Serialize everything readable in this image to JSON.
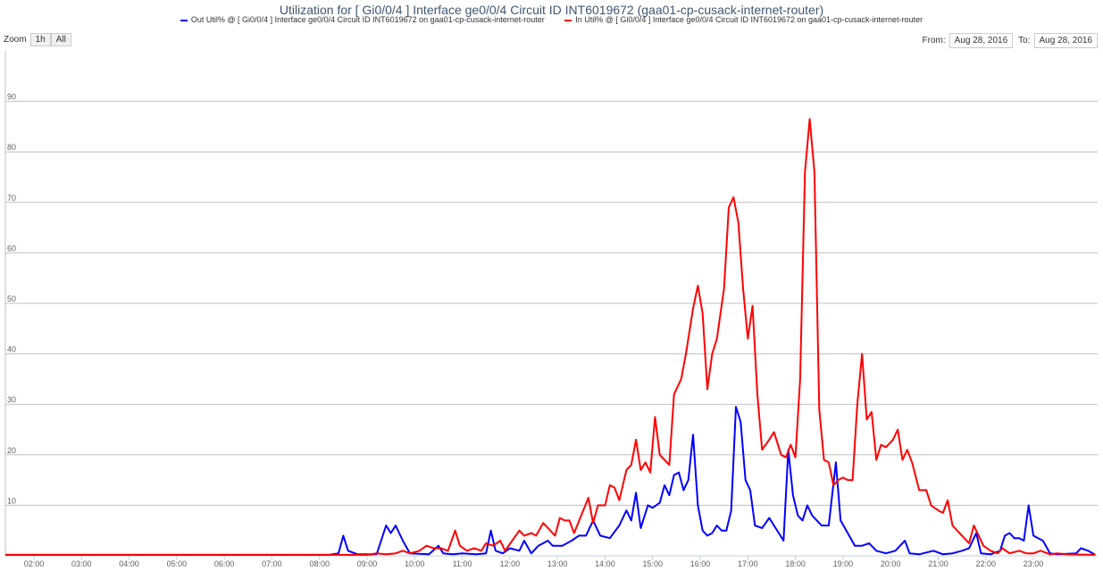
{
  "title": "Utilization for [ Gi0/0/4 ] Interface ge0/0/4 Circuit ID INT6019672 (gaa01-cp-cusack-internet-router)",
  "legend": [
    {
      "label": "Out Util% @ [ Gi0/0/4 ] Interface ge0/0/4 Circuit ID INT6019672 on gaa01-cp-cusack-internet-router",
      "color": "#0000ff"
    },
    {
      "label": "In Util% @ [ Gi0/0/4 ] Interface ge0/0/4 Circuit ID INT6019672 on gaa01-cp-cusack-internet-router",
      "color": "#ff0000"
    }
  ],
  "zoom": {
    "label": "Zoom",
    "buttons": [
      "1h",
      "All"
    ]
  },
  "range": {
    "from_label": "From:",
    "from_value": "Aug 28, 2016",
    "to_label": "To:",
    "to_value": "Aug 28, 2016"
  },
  "chart_data": {
    "type": "line",
    "xlim": [
      1.4,
      24.35
    ],
    "ylim": [
      0,
      100
    ],
    "x_ticks": [
      "02:00",
      "03:00",
      "04:00",
      "05:00",
      "06:00",
      "07:00",
      "08:00",
      "09:00",
      "10:00",
      "11:00",
      "12:00",
      "13:00",
      "14:00",
      "15:00",
      "16:00",
      "17:00",
      "18:00",
      "19:00",
      "20:00",
      "21:00",
      "22:00",
      "23:00"
    ],
    "y_ticks": [
      10,
      20,
      30,
      40,
      50,
      60,
      70,
      80,
      90
    ],
    "grid": true,
    "series": [
      {
        "name": "Out Util% @ [ Gi0/0/4 ] Interface ge0/0/4 Circuit ID INT6019672 on gaa01-cp-cusack-internet-router",
        "color": "#0000ff",
        "points": [
          [
            1.4,
            0.2
          ],
          [
            8.2,
            0.2
          ],
          [
            8.4,
            0.5
          ],
          [
            8.5,
            4
          ],
          [
            8.6,
            1
          ],
          [
            8.8,
            0.3
          ],
          [
            9.2,
            0.3
          ],
          [
            9.4,
            6
          ],
          [
            9.5,
            4.5
          ],
          [
            9.6,
            6
          ],
          [
            9.75,
            3
          ],
          [
            9.9,
            0.5
          ],
          [
            10.3,
            0.3
          ],
          [
            10.5,
            2
          ],
          [
            10.6,
            0.5
          ],
          [
            10.8,
            0.3
          ],
          [
            11.0,
            0.5
          ],
          [
            11.3,
            0.3
          ],
          [
            11.5,
            0.5
          ],
          [
            11.6,
            5
          ],
          [
            11.7,
            1
          ],
          [
            11.85,
            0.5
          ],
          [
            12.0,
            1.5
          ],
          [
            12.2,
            1
          ],
          [
            12.3,
            3
          ],
          [
            12.45,
            0.5
          ],
          [
            12.6,
            2
          ],
          [
            12.8,
            3
          ],
          [
            12.9,
            2
          ],
          [
            13.1,
            2
          ],
          [
            13.3,
            3
          ],
          [
            13.45,
            4
          ],
          [
            13.6,
            4
          ],
          [
            13.75,
            7
          ],
          [
            13.9,
            4
          ],
          [
            14.1,
            3.5
          ],
          [
            14.3,
            6
          ],
          [
            14.45,
            9
          ],
          [
            14.55,
            7
          ],
          [
            14.65,
            12.5
          ],
          [
            14.75,
            5.5
          ],
          [
            14.9,
            10
          ],
          [
            15.0,
            9.5
          ],
          [
            15.15,
            10.5
          ],
          [
            15.25,
            14
          ],
          [
            15.35,
            12
          ],
          [
            15.45,
            16
          ],
          [
            15.55,
            16.5
          ],
          [
            15.65,
            13
          ],
          [
            15.75,
            15
          ],
          [
            15.85,
            24
          ],
          [
            15.95,
            10
          ],
          [
            16.05,
            5
          ],
          [
            16.15,
            4
          ],
          [
            16.25,
            4.5
          ],
          [
            16.35,
            6
          ],
          [
            16.45,
            5
          ],
          [
            16.55,
            5
          ],
          [
            16.65,
            9
          ],
          [
            16.75,
            29.5
          ],
          [
            16.85,
            26.5
          ],
          [
            16.95,
            15
          ],
          [
            17.05,
            13
          ],
          [
            17.15,
            6
          ],
          [
            17.3,
            5.5
          ],
          [
            17.45,
            7.5
          ],
          [
            17.55,
            6
          ],
          [
            17.65,
            4.5
          ],
          [
            17.75,
            3
          ],
          [
            17.85,
            21
          ],
          [
            17.95,
            12
          ],
          [
            18.05,
            8
          ],
          [
            18.15,
            7
          ],
          [
            18.25,
            10
          ],
          [
            18.35,
            8
          ],
          [
            18.45,
            7
          ],
          [
            18.55,
            6
          ],
          [
            18.7,
            6
          ],
          [
            18.85,
            18.5
          ],
          [
            18.95,
            7
          ],
          [
            19.1,
            4.5
          ],
          [
            19.25,
            2
          ],
          [
            19.4,
            2
          ],
          [
            19.55,
            2.5
          ],
          [
            19.7,
            1
          ],
          [
            19.9,
            0.5
          ],
          [
            20.1,
            1
          ],
          [
            20.3,
            3
          ],
          [
            20.4,
            0.5
          ],
          [
            20.6,
            0.3
          ],
          [
            20.9,
            1
          ],
          [
            21.1,
            0.3
          ],
          [
            21.3,
            0.5
          ],
          [
            21.5,
            1
          ],
          [
            21.65,
            1.5
          ],
          [
            21.8,
            4.5
          ],
          [
            21.9,
            0.5
          ],
          [
            22.1,
            0.3
          ],
          [
            22.3,
            1
          ],
          [
            22.4,
            4
          ],
          [
            22.5,
            4.5
          ],
          [
            22.6,
            3.5
          ],
          [
            22.7,
            3.5
          ],
          [
            22.8,
            3
          ],
          [
            22.9,
            10
          ],
          [
            23.0,
            4
          ],
          [
            23.1,
            3.5
          ],
          [
            23.2,
            3
          ],
          [
            23.35,
            0.5
          ],
          [
            23.5,
            0.3
          ],
          [
            23.9,
            0.5
          ],
          [
            24.0,
            1.5
          ],
          [
            24.15,
            1
          ],
          [
            24.3,
            0.2
          ]
        ]
      },
      {
        "name": "In Util% @ [ Gi0/0/4 ] Interface ge0/0/4 Circuit ID INT6019672 on gaa01-cp-cusack-internet-router",
        "color": "#ff0000",
        "points": [
          [
            1.4,
            0.2
          ],
          [
            9.0,
            0.2
          ],
          [
            9.2,
            0.5
          ],
          [
            9.4,
            0.3
          ],
          [
            9.6,
            0.5
          ],
          [
            9.75,
            1
          ],
          [
            9.9,
            0.5
          ],
          [
            10.1,
            1
          ],
          [
            10.25,
            2
          ],
          [
            10.4,
            1.5
          ],
          [
            10.55,
            1.5
          ],
          [
            10.7,
            1
          ],
          [
            10.85,
            5
          ],
          [
            10.95,
            2
          ],
          [
            11.1,
            1
          ],
          [
            11.25,
            1.5
          ],
          [
            11.4,
            1
          ],
          [
            11.5,
            2.5
          ],
          [
            11.65,
            2
          ],
          [
            11.8,
            3
          ],
          [
            11.9,
            1
          ],
          [
            12.05,
            3
          ],
          [
            12.2,
            5
          ],
          [
            12.3,
            4
          ],
          [
            12.45,
            4.5
          ],
          [
            12.55,
            4
          ],
          [
            12.7,
            6.5
          ],
          [
            12.85,
            5
          ],
          [
            12.95,
            4
          ],
          [
            13.05,
            7.5
          ],
          [
            13.15,
            7
          ],
          [
            13.25,
            7
          ],
          [
            13.35,
            4.5
          ],
          [
            13.5,
            8
          ],
          [
            13.65,
            11.5
          ],
          [
            13.75,
            6.5
          ],
          [
            13.85,
            10
          ],
          [
            14.0,
            10
          ],
          [
            14.1,
            14
          ],
          [
            14.2,
            13.5
          ],
          [
            14.3,
            11
          ],
          [
            14.45,
            17
          ],
          [
            14.55,
            18
          ],
          [
            14.65,
            23
          ],
          [
            14.75,
            17
          ],
          [
            14.85,
            18.5
          ],
          [
            14.95,
            16.5
          ],
          [
            15.05,
            27.5
          ],
          [
            15.15,
            20
          ],
          [
            15.25,
            19
          ],
          [
            15.35,
            18
          ],
          [
            15.45,
            32
          ],
          [
            15.6,
            35
          ],
          [
            15.7,
            40
          ],
          [
            15.85,
            49
          ],
          [
            15.95,
            53.5
          ],
          [
            16.05,
            48
          ],
          [
            16.15,
            33
          ],
          [
            16.25,
            40
          ],
          [
            16.35,
            43
          ],
          [
            16.5,
            53
          ],
          [
            16.6,
            69
          ],
          [
            16.7,
            71
          ],
          [
            16.8,
            66
          ],
          [
            16.9,
            53
          ],
          [
            17.0,
            43
          ],
          [
            17.1,
            49.5
          ],
          [
            17.2,
            32
          ],
          [
            17.3,
            21
          ],
          [
            17.45,
            23
          ],
          [
            17.55,
            24.5
          ],
          [
            17.7,
            20
          ],
          [
            17.8,
            19.5
          ],
          [
            17.9,
            22
          ],
          [
            18.0,
            19.5
          ],
          [
            18.1,
            35
          ],
          [
            18.2,
            76
          ],
          [
            18.3,
            86.5
          ],
          [
            18.4,
            76
          ],
          [
            18.5,
            29
          ],
          [
            18.6,
            19
          ],
          [
            18.7,
            18.5
          ],
          [
            18.8,
            14
          ],
          [
            18.9,
            15
          ],
          [
            19.0,
            15.5
          ],
          [
            19.1,
            15
          ],
          [
            19.2,
            15
          ],
          [
            19.3,
            30
          ],
          [
            19.4,
            40
          ],
          [
            19.5,
            27
          ],
          [
            19.6,
            28.5
          ],
          [
            19.7,
            19
          ],
          [
            19.8,
            22
          ],
          [
            19.9,
            21.5
          ],
          [
            20.05,
            23
          ],
          [
            20.15,
            25
          ],
          [
            20.25,
            19
          ],
          [
            20.35,
            21
          ],
          [
            20.45,
            18.5
          ],
          [
            20.6,
            13
          ],
          [
            20.75,
            13
          ],
          [
            20.85,
            10
          ],
          [
            21.0,
            9
          ],
          [
            21.1,
            8.5
          ],
          [
            21.2,
            11
          ],
          [
            21.3,
            6
          ],
          [
            21.5,
            4
          ],
          [
            21.65,
            2.5
          ],
          [
            21.75,
            6
          ],
          [
            21.85,
            4
          ],
          [
            21.95,
            2
          ],
          [
            22.1,
            1
          ],
          [
            22.25,
            0.5
          ],
          [
            22.35,
            1.5
          ],
          [
            22.5,
            0.5
          ],
          [
            22.7,
            1
          ],
          [
            22.85,
            0.5
          ],
          [
            23.0,
            0.5
          ],
          [
            23.15,
            1
          ],
          [
            23.35,
            0.3
          ],
          [
            23.5,
            0.5
          ],
          [
            23.7,
            0.3
          ],
          [
            24.3,
            0.2
          ]
        ]
      }
    ]
  }
}
